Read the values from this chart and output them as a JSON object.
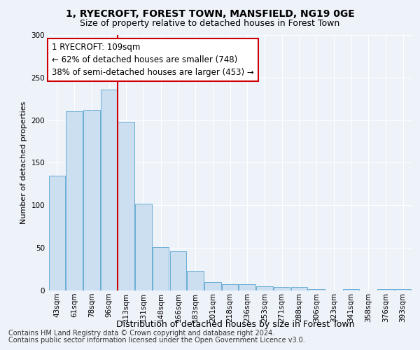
{
  "title": "1, RYECROFT, FOREST TOWN, MANSFIELD, NG19 0GE",
  "subtitle": "Size of property relative to detached houses in Forest Town",
  "xlabel": "Distribution of detached houses by size in Forest Town",
  "ylabel": "Number of detached properties",
  "bar_color": "#ccdff0",
  "bar_edge_color": "#6aaed6",
  "background_color": "#eef2f9",
  "grid_color": "#ffffff",
  "annotation_box_color": "#ffffff",
  "annotation_border_color": "#cc0000",
  "vline_color": "#cc0000",
  "categories": [
    "43sqm",
    "61sqm",
    "78sqm",
    "96sqm",
    "113sqm",
    "131sqm",
    "148sqm",
    "166sqm",
    "183sqm",
    "201sqm",
    "218sqm",
    "236sqm",
    "253sqm",
    "271sqm",
    "288sqm",
    "306sqm",
    "323sqm",
    "341sqm",
    "358sqm",
    "376sqm",
    "393sqm"
  ],
  "values": [
    135,
    210,
    212,
    236,
    198,
    102,
    51,
    46,
    23,
    10,
    7,
    7,
    5,
    4,
    4,
    2,
    0,
    2,
    0,
    2,
    2
  ],
  "vline_x_index": 4,
  "annotation_line1": "1 RYECROFT: 109sqm",
  "annotation_line2": "← 62% of detached houses are smaller (748)",
  "annotation_line3": "38% of semi-detached houses are larger (453) →",
  "ylim": [
    0,
    300
  ],
  "yticks": [
    0,
    50,
    100,
    150,
    200,
    250,
    300
  ],
  "footer_line1": "Contains HM Land Registry data © Crown copyright and database right 2024.",
  "footer_line2": "Contains public sector information licensed under the Open Government Licence v3.0.",
  "title_fontsize": 10,
  "subtitle_fontsize": 9,
  "annotation_fontsize": 8.5,
  "tick_fontsize": 7.5,
  "ylabel_fontsize": 8,
  "xlabel_fontsize": 9,
  "footer_fontsize": 7
}
